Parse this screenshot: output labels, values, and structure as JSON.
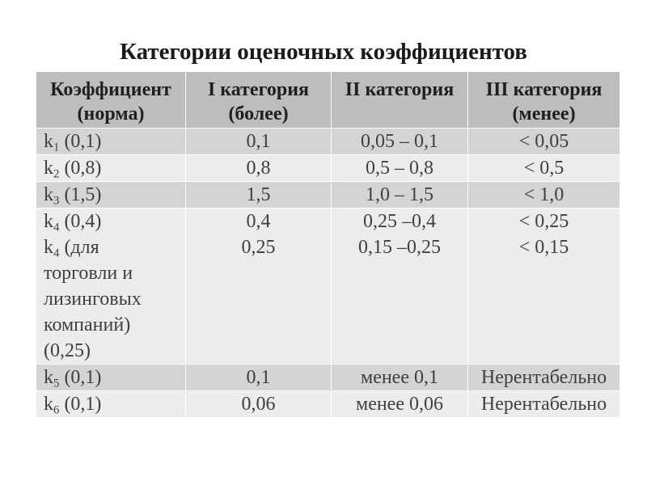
{
  "slide": {
    "title": "Категории оценочных коэффициентов"
  },
  "theme": {
    "header_bg": "#bdbdbd",
    "band_dark": "#d4d4d4",
    "band_light": "#ececec",
    "text": "#3f3f3f",
    "header_text": "#1f1f1f",
    "grid_line": "#ffffff"
  },
  "table": {
    "headers": [
      {
        "label": "Коэффициент",
        "sublabel": "(норма)"
      },
      {
        "label": "I категория",
        "sublabel": "(более)"
      },
      {
        "label": "II категория"
      },
      {
        "label": "III категория",
        "sublabel": "(менее)"
      }
    ],
    "rows": [
      {
        "coef": [
          {
            "symbol": "k",
            "index": "1",
            "text": " (0,1)"
          }
        ],
        "category_1": [
          "0,1"
        ],
        "category_2": [
          "0,05 – 0,1"
        ],
        "category_3": [
          "< 0,05"
        ]
      },
      {
        "coef": [
          {
            "symbol": "k",
            "index": "2",
            "text": " (0,8)"
          }
        ],
        "category_1": [
          "0,8"
        ],
        "category_2": [
          "0,5 – 0,8"
        ],
        "category_3": [
          "< 0,5"
        ]
      },
      {
        "coef": [
          {
            "symbol": "k",
            "index": "3",
            "text": " (1,5)"
          }
        ],
        "category_1": [
          "1,5"
        ],
        "category_2": [
          "1,0 – 1,5"
        ],
        "category_3": [
          "< 1,0"
        ]
      },
      {
        "coef": [
          {
            "symbol": "k",
            "index": "4",
            "text": " (0,4)"
          },
          {
            "symbol": "k",
            "index": "4",
            "text": " (для торговли и лизинговых компаний) (0,25)"
          }
        ],
        "category_1": [
          "0,4",
          "0,25"
        ],
        "category_2": [
          "0,25 –0,4",
          "0,15 –0,25"
        ],
        "category_3": [
          "< 0,25",
          "< 0,15"
        ]
      },
      {
        "coef": [
          {
            "symbol": "k",
            "index": "5",
            "text": " (0,1)"
          }
        ],
        "category_1": [
          "0,1"
        ],
        "category_2": [
          "менее 0,1"
        ],
        "category_3": [
          "Нерентабельно"
        ]
      },
      {
        "coef": [
          {
            "symbol": "k",
            "index": "6",
            "text": " (0,1)"
          }
        ],
        "category_1": [
          "0,06"
        ],
        "category_2": [
          "менее 0,06"
        ],
        "category_3": [
          "Нерентабельно"
        ]
      }
    ]
  }
}
